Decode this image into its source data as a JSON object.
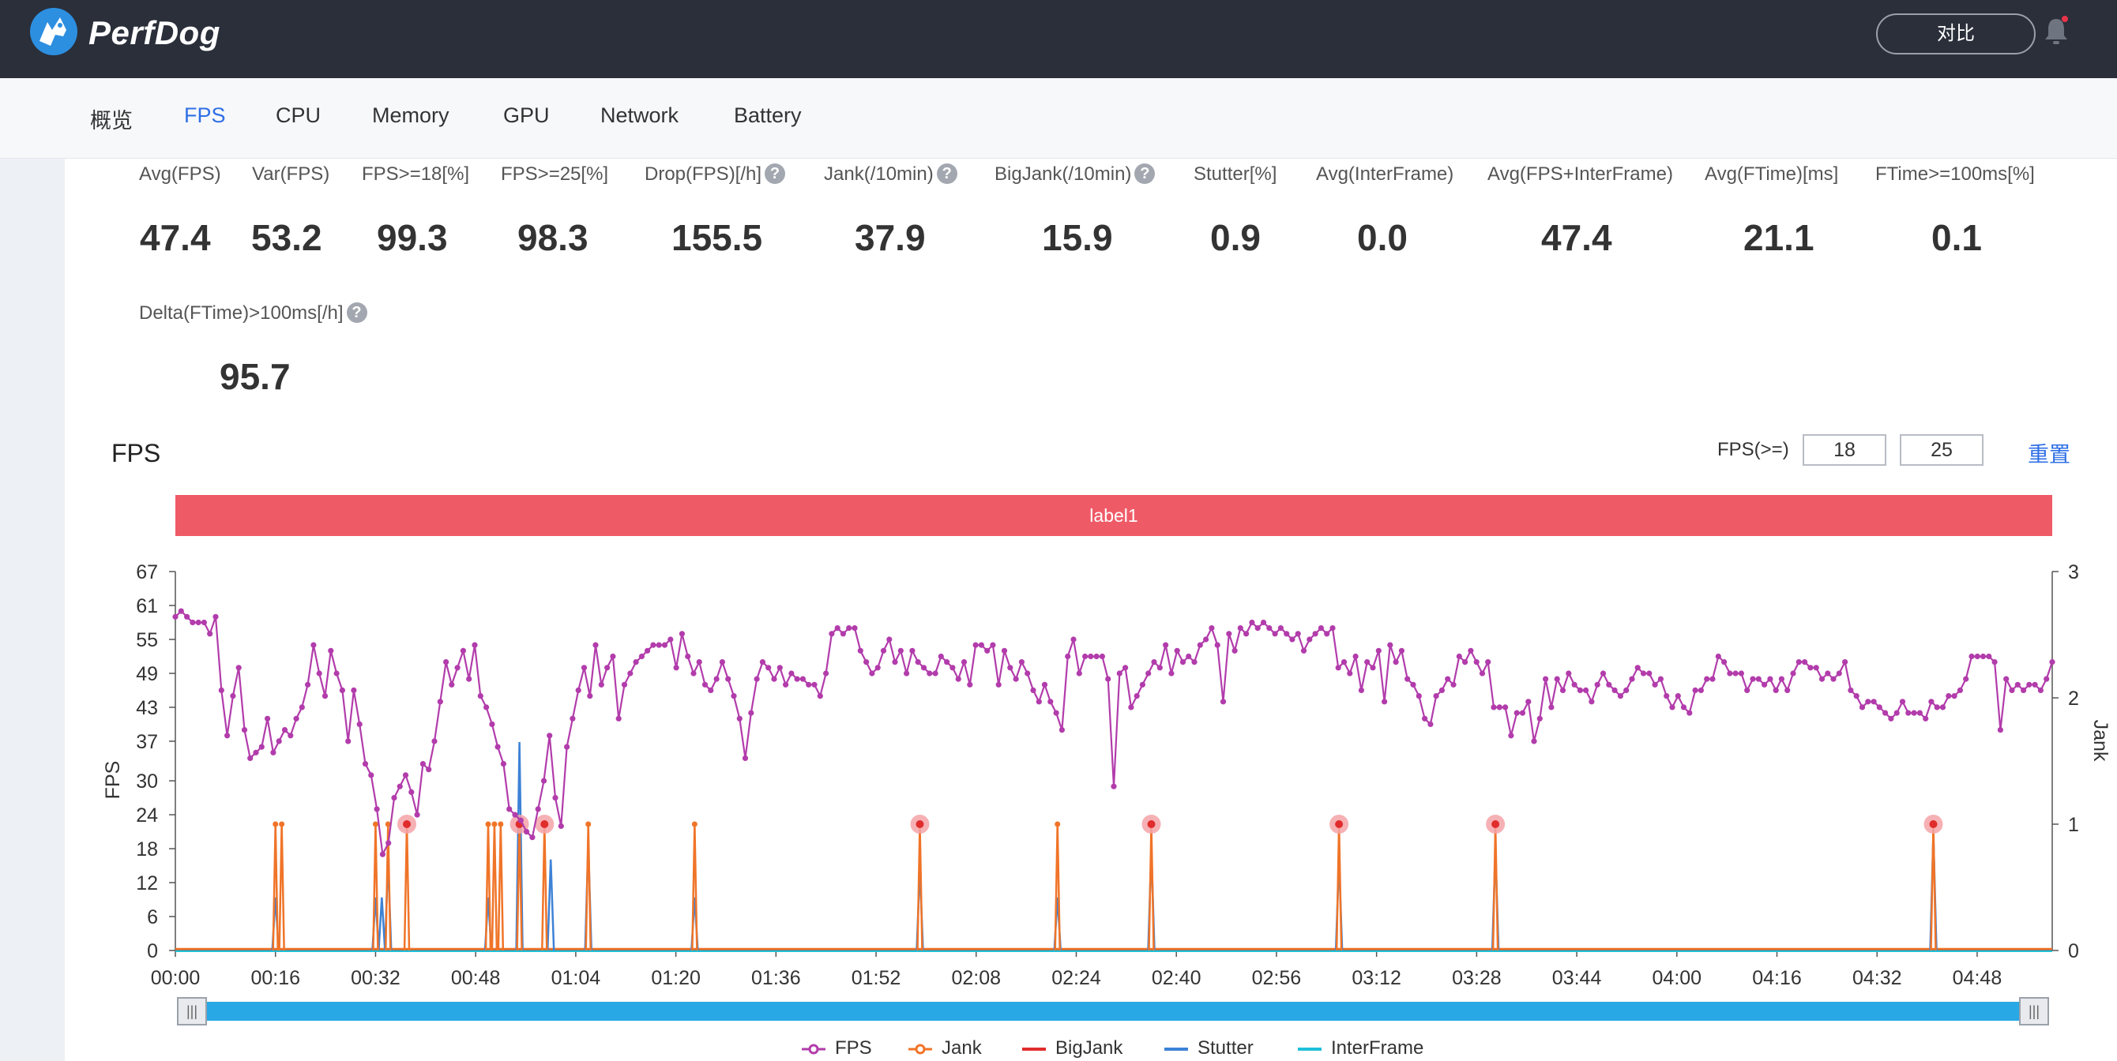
{
  "app": {
    "brand": "PerfDog",
    "compare_label": "对比"
  },
  "tabs": [
    {
      "label": "概览",
      "active": false
    },
    {
      "label": "FPS",
      "active": true
    },
    {
      "label": "CPU",
      "active": false
    },
    {
      "label": "Memory",
      "active": false
    },
    {
      "label": "GPU",
      "active": false
    },
    {
      "label": "Network",
      "active": false
    },
    {
      "label": "Battery",
      "active": false
    }
  ],
  "metrics": [
    {
      "label": "Avg(FPS)",
      "value": "47.4",
      "help": false
    },
    {
      "label": "Var(FPS)",
      "value": "53.2",
      "help": false
    },
    {
      "label": "FPS>=18[%]",
      "value": "99.3",
      "help": false
    },
    {
      "label": "FPS>=25[%]",
      "value": "98.3",
      "help": false
    },
    {
      "label": "Drop(FPS)[/h]",
      "value": "155.5",
      "help": true
    },
    {
      "label": "Jank(/10min)",
      "value": "37.9",
      "help": true
    },
    {
      "label": "BigJank(/10min)",
      "value": "15.9",
      "help": true
    },
    {
      "label": "Stutter[%]",
      "value": "0.9",
      "help": false
    },
    {
      "label": "Avg(InterFrame)",
      "value": "0.0",
      "help": false
    },
    {
      "label": "Avg(FPS+InterFrame)",
      "value": "47.4",
      "help": false
    },
    {
      "label": "Avg(FTime)[ms]",
      "value": "21.1",
      "help": false
    },
    {
      "label": "FTime>=100ms[%]",
      "value": "0.1",
      "help": false
    },
    {
      "label": "Delta(FTime)>100ms[/h]",
      "value": "95.7",
      "help": true
    }
  ],
  "help_glyph": "?",
  "section": {
    "title": "FPS",
    "threshold_label": "FPS(>=)",
    "threshold_values": [
      "18",
      "25"
    ],
    "reset_label": "重置",
    "label_band": "label1"
  },
  "slider": {
    "handle_glyph": "|||"
  },
  "chart_data": {
    "type": "line",
    "x_ticks": [
      "00:00",
      "00:16",
      "00:32",
      "00:48",
      "01:04",
      "01:20",
      "01:36",
      "01:52",
      "02:08",
      "02:24",
      "02:40",
      "02:56",
      "03:12",
      "03:28",
      "03:44",
      "04:00",
      "04:16",
      "04:32",
      "04:48"
    ],
    "y_left_label": "FPS",
    "y_left_ticks": [
      0,
      6,
      12,
      18,
      24,
      30,
      37,
      43,
      49,
      55,
      61,
      67
    ],
    "y_left_range": [
      0,
      67
    ],
    "y_right_label": "Jank",
    "y_right_ticks": [
      0,
      1,
      2,
      3
    ],
    "y_right_range": [
      0,
      3
    ],
    "x_range_seconds": [
      0,
      300
    ],
    "colors": {
      "FPS": "#b23cab",
      "Jank": "#f07428",
      "BigJank": "#e02c2c",
      "Stutter": "#3d82d6",
      "InterFrame": "#1fc0d8",
      "axis": "#555",
      "marker_halo": "#f5a3a8"
    },
    "series": [
      {
        "name": "FPS",
        "type": "line",
        "values": [
          59,
          60,
          59,
          58,
          58,
          58,
          56,
          59,
          46,
          38,
          45,
          50,
          39,
          34,
          35,
          36,
          41,
          35,
          37,
          39,
          38,
          41,
          43,
          47,
          54,
          49,
          45,
          53,
          49,
          46,
          37,
          46,
          40,
          33,
          31,
          25,
          17,
          19,
          27,
          29,
          31,
          28,
          24,
          33,
          32,
          37,
          44,
          51,
          47,
          50,
          53,
          48,
          54,
          45,
          43,
          40,
          36,
          33,
          25,
          24,
          23,
          21,
          20,
          25,
          30,
          38,
          27,
          22,
          36,
          41,
          46,
          50,
          45,
          54,
          47,
          50,
          52,
          41,
          47,
          49,
          51,
          52,
          53,
          54,
          54,
          54,
          55,
          50,
          56,
          52,
          49,
          51,
          47,
          46,
          48,
          51,
          48,
          45,
          41,
          34,
          42,
          48,
          51,
          50,
          48,
          50,
          47,
          49,
          48,
          48,
          47,
          47,
          45,
          49,
          56,
          57,
          56,
          57,
          57,
          53,
          51,
          49,
          50,
          53,
          55,
          51,
          53,
          49,
          53,
          51,
          50,
          49,
          49,
          52,
          51,
          50,
          48,
          51,
          47,
          54,
          54,
          53,
          54,
          47,
          53,
          50,
          48,
          51,
          49,
          46,
          44,
          47,
          44,
          42,
          39,
          52,
          55,
          49,
          52,
          52,
          52,
          52,
          48,
          29,
          49,
          50,
          43,
          45,
          47,
          49,
          51,
          50,
          54,
          49,
          53,
          51,
          52,
          51,
          54,
          55,
          57,
          54,
          44,
          56,
          53,
          57,
          56,
          58,
          57,
          58,
          57,
          56,
          57,
          56,
          55,
          56,
          53,
          55,
          56,
          57,
          56,
          57,
          50,
          51,
          49,
          52,
          46,
          51,
          50,
          53,
          44,
          54,
          51,
          53,
          48,
          47,
          45,
          41,
          40,
          45,
          46,
          48,
          47,
          52,
          51,
          53,
          51,
          49,
          51,
          43,
          43,
          43,
          38,
          42,
          42,
          44,
          37,
          41,
          48,
          43,
          48,
          46,
          49,
          47,
          46,
          46,
          44,
          47,
          49,
          47,
          46,
          45,
          46,
          48,
          50,
          49,
          49,
          47,
          48,
          45,
          43,
          45,
          43,
          42,
          46,
          46,
          48,
          48,
          52,
          51,
          49,
          49,
          49,
          46,
          48,
          48,
          47,
          48,
          46,
          48,
          46,
          49,
          51,
          51,
          50,
          50,
          48,
          49,
          48,
          49,
          51,
          46,
          45,
          43,
          44,
          44,
          43,
          42,
          41,
          42,
          44,
          42,
          42,
          42,
          41,
          44,
          43,
          43,
          45,
          45,
          46,
          48,
          52,
          52,
          52,
          52,
          51,
          39,
          48,
          46,
          47,
          46,
          47,
          47,
          46,
          48,
          51
        ]
      },
      {
        "name": "Jank",
        "type": "line",
        "axis": "right",
        "spikes_at_seconds": [
          16,
          17,
          32,
          34,
          37,
          50,
          51,
          52,
          55,
          59,
          66,
          83,
          119,
          141,
          156,
          186,
          211,
          281
        ]
      },
      {
        "name": "BigJank",
        "type": "line",
        "axis": "right",
        "spikes_at_seconds": [
          37,
          55,
          59,
          119,
          156,
          186,
          211,
          281
        ]
      },
      {
        "name": "Stutter",
        "type": "line",
        "axis": "right",
        "spikes": [
          {
            "t": 16,
            "v": 0.42
          },
          {
            "t": 32,
            "v": 0.42
          },
          {
            "t": 33,
            "v": 0.42
          },
          {
            "t": 34,
            "v": 0.72
          },
          {
            "t": 50,
            "v": 0.42
          },
          {
            "t": 55,
            "v": 1.65
          },
          {
            "t": 60,
            "v": 0.72
          },
          {
            "t": 66,
            "v": 0.85
          },
          {
            "t": 83,
            "v": 0.42
          },
          {
            "t": 119,
            "v": 0.65
          },
          {
            "t": 141,
            "v": 0.42
          },
          {
            "t": 156,
            "v": 0.8
          },
          {
            "t": 186,
            "v": 0.72
          },
          {
            "t": 211,
            "v": 0.8
          },
          {
            "t": 281,
            "v": 0.92
          }
        ]
      },
      {
        "name": "InterFrame",
        "type": "line",
        "axis": "right",
        "values": [
          0
        ]
      }
    ],
    "legend": [
      "FPS",
      "Jank",
      "BigJank",
      "Stutter",
      "InterFrame"
    ],
    "legend_placement": "bottom-center"
  }
}
